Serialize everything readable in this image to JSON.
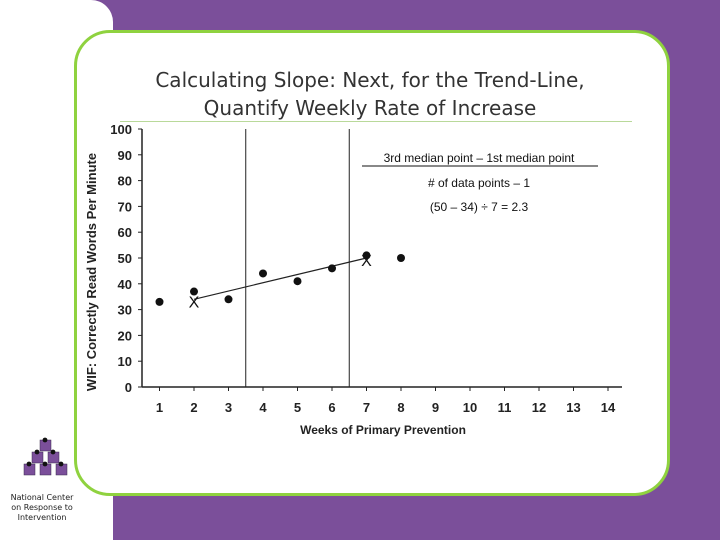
{
  "slide": {
    "title": "Calculating Slope: Next, for the Trend-Line, Quantify Weekly Rate of Increase"
  },
  "sidebar": {
    "logo_text": "National Center\non Response to\nIntervention",
    "logo_icon": "cube-pyramid-icon"
  },
  "colors": {
    "background": "#7b4f9a",
    "card_border": "#8fd23f"
  },
  "chart_data": {
    "type": "scatter",
    "title": "",
    "xlabel": "Weeks of Primary Prevention",
    "ylabel": "WIF: Correctly Read Words Per Minute",
    "xlim": [
      1,
      14
    ],
    "ylim": [
      0,
      100
    ],
    "xticks": [
      1,
      2,
      3,
      4,
      5,
      6,
      7,
      8,
      9,
      10,
      11,
      12,
      13,
      14
    ],
    "yticks": [
      0,
      10,
      20,
      30,
      40,
      50,
      60,
      70,
      80,
      90,
      100
    ],
    "series": [
      {
        "x": [
          1,
          2,
          3,
          4,
          5,
          6,
          7,
          8
        ],
        "y": [
          33,
          37,
          34,
          44,
          41,
          46,
          51,
          50
        ]
      }
    ],
    "trend_line": {
      "from": [
        2,
        34
      ],
      "to": [
        7,
        50
      ]
    },
    "median_markers": [
      {
        "label": "X",
        "x": 2,
        "y": 34
      },
      {
        "label": "X",
        "x": 7,
        "y": 50
      }
    ],
    "vertical_lines_x": [
      3,
      6
    ],
    "annotations": {
      "numerator": "3rd median point – 1st median point",
      "denominator": "# of data points – 1",
      "result": "(50 – 34) ÷ 7 = 2.3"
    },
    "grid": false
  }
}
